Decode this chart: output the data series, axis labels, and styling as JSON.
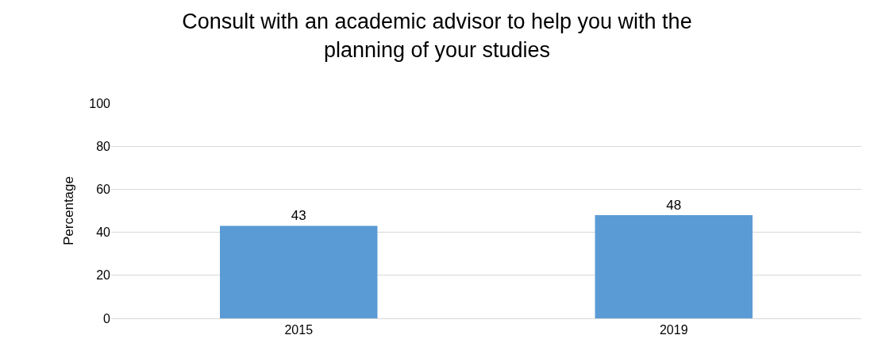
{
  "chart_data": {
    "type": "bar",
    "title": "Consult with an academic advisor to help you with the planning of your studies",
    "ylabel": "Percentage",
    "categories": [
      "2015",
      "2019"
    ],
    "values": [
      43,
      48
    ],
    "color": "#5b9bd5",
    "ylim": [
      0,
      100
    ],
    "yticks": [
      0,
      20,
      40,
      60,
      80,
      100
    ],
    "grid": "y",
    "data_labels": true,
    "legend": false
  }
}
